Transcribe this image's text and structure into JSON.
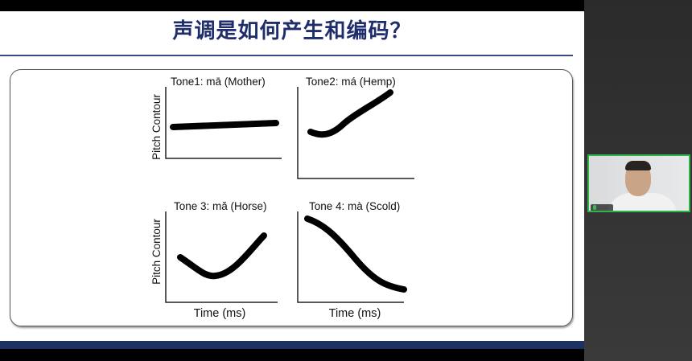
{
  "slide": {
    "title": "声调是如何产生和编码？",
    "panels": [
      {
        "title": "Tone1: mā (Mother)",
        "ylabel": "Pitch Contour",
        "xlabel": ""
      },
      {
        "title": "Tone2: má (Hemp)",
        "ylabel": "",
        "xlabel": ""
      },
      {
        "title": "Tone 3: mă (Horse)",
        "ylabel": "Pitch Contour",
        "xlabel": "Time (ms)"
      },
      {
        "title": "Tone 4: mà (Scold)",
        "ylabel": "",
        "xlabel": "Time (ms)"
      }
    ],
    "colors": {
      "title": "#1f2d6b",
      "band": "#1e3163",
      "video_border": "#2fb34a"
    }
  },
  "video": {
    "participant_icon": "mic-icon"
  }
}
